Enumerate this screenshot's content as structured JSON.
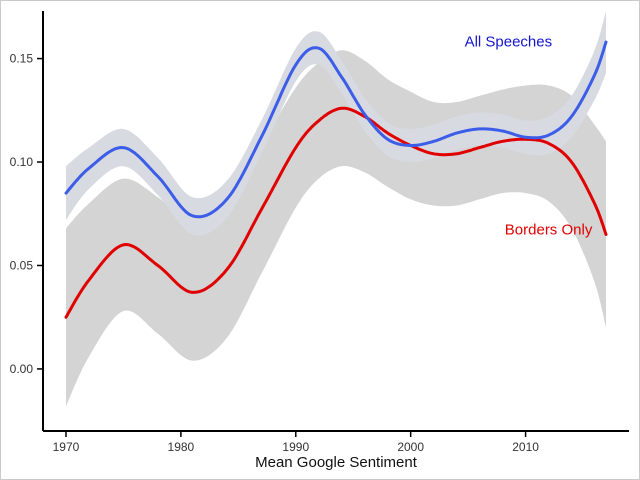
{
  "figure": {
    "background": "#ffffff",
    "border_color": "#c9c9c9"
  },
  "chart_data": {
    "type": "line",
    "title": "",
    "xlabel": "Mean Google Sentiment",
    "ylabel": "",
    "grid": false,
    "legend_position": "in-plot annotations",
    "xlim": [
      1968,
      2019
    ],
    "ylim": [
      -0.03,
      0.173
    ],
    "xticks": [
      "1970",
      "1980",
      "1990",
      "2000",
      "2010"
    ],
    "xtick_values": [
      1970,
      1980,
      1990,
      2000,
      2010
    ],
    "yticks": [
      "0.00",
      "0.05",
      "0.10",
      "0.15"
    ],
    "ytick_values": [
      0.0,
      0.05,
      0.1,
      0.15
    ],
    "axis_color": "#000000",
    "tick_label_color": "#333333",
    "series": [
      {
        "name": "All Speeches",
        "color": "#3c5de8",
        "band_color": "#d8dae2",
        "x": [
          1970,
          1972,
          1975,
          1978,
          1981,
          1984,
          1987,
          1990,
          1992,
          1994,
          1996,
          1998,
          2000,
          2002,
          2004,
          2006,
          2008,
          2010,
          2012,
          2014,
          2016,
          2017
        ],
        "y": [
          0.085,
          0.097,
          0.107,
          0.093,
          0.074,
          0.082,
          0.112,
          0.147,
          0.155,
          0.141,
          0.123,
          0.111,
          0.108,
          0.11,
          0.114,
          0.116,
          0.115,
          0.112,
          0.113,
          0.122,
          0.142,
          0.158
        ],
        "y_lower": [
          0.072,
          0.087,
          0.098,
          0.084,
          0.065,
          0.073,
          0.104,
          0.139,
          0.147,
          0.133,
          0.115,
          0.103,
          0.1,
          0.102,
          0.106,
          0.108,
          0.107,
          0.104,
          0.104,
          0.112,
          0.13,
          0.143
        ],
        "y_upper": [
          0.098,
          0.107,
          0.116,
          0.102,
          0.083,
          0.091,
          0.12,
          0.155,
          0.163,
          0.149,
          0.131,
          0.119,
          0.116,
          0.118,
          0.122,
          0.124,
          0.123,
          0.12,
          0.122,
          0.132,
          0.154,
          0.173
        ]
      },
      {
        "name": "Borders Only",
        "color": "#e00000",
        "band_color": "#d4d4d4",
        "x": [
          1970,
          1972,
          1975,
          1978,
          1981,
          1984,
          1987,
          1990,
          1992,
          1994,
          1996,
          1998,
          2000,
          2002,
          2004,
          2006,
          2008,
          2010,
          2012,
          2014,
          2016,
          2017
        ],
        "y": [
          0.025,
          0.043,
          0.06,
          0.05,
          0.037,
          0.048,
          0.077,
          0.107,
          0.12,
          0.126,
          0.122,
          0.114,
          0.108,
          0.104,
          0.104,
          0.107,
          0.11,
          0.111,
          0.109,
          0.1,
          0.08,
          0.065
        ],
        "y_lower": [
          -0.018,
          0.006,
          0.028,
          0.017,
          0.004,
          0.015,
          0.046,
          0.078,
          0.092,
          0.098,
          0.095,
          0.088,
          0.082,
          0.079,
          0.079,
          0.082,
          0.085,
          0.085,
          0.081,
          0.068,
          0.042,
          0.02
        ],
        "y_upper": [
          0.068,
          0.08,
          0.092,
          0.083,
          0.07,
          0.081,
          0.108,
          0.136,
          0.148,
          0.154,
          0.149,
          0.14,
          0.134,
          0.129,
          0.129,
          0.132,
          0.135,
          0.137,
          0.137,
          0.132,
          0.118,
          0.11
        ]
      }
    ],
    "annotations": [
      {
        "text": "All Speeches",
        "x": 2008.5,
        "y": 0.158,
        "color": "#1515cf"
      },
      {
        "text": "Borders Only",
        "x": 2012.0,
        "y": 0.067,
        "color": "#e00000"
      }
    ]
  }
}
